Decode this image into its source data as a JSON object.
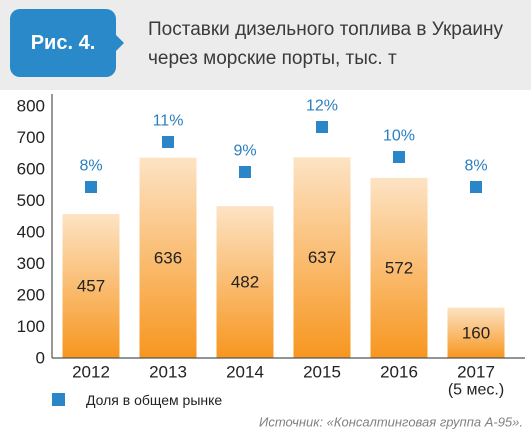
{
  "figure": {
    "label": "Рис. 4."
  },
  "chart_data": {
    "type": "bar",
    "title_lines": [
      "Поставки дизельного топлива в Украину",
      "через морские порты, тыс. т"
    ],
    "categories": [
      "2012",
      "2013",
      "2014",
      "2015",
      "2016",
      "2017"
    ],
    "category_sublabels": [
      "",
      "",
      "",
      "",
      "",
      "(5 мес.)"
    ],
    "ylim": [
      0,
      800
    ],
    "yticks": [
      0,
      100,
      200,
      300,
      400,
      500,
      600,
      700,
      800
    ],
    "grid": false,
    "legend_placement": "bottom-left",
    "series": [
      {
        "values": [
          457,
          636,
          482,
          637,
          572,
          160
        ]
      },
      {
        "name": "Доля в общем рынке",
        "values": [
          8,
          11,
          9,
          12,
          10,
          8
        ],
        "labels": [
          "8%",
          "11%",
          "9%",
          "12%",
          "10%",
          "8%"
        ]
      }
    ],
    "colors": {
      "bar_top": "#fde3c4",
      "bar_bottom": "#f7961f",
      "marker": "#2a86c7",
      "marker_label": "#2a7fc0",
      "figure_label": "#2a89c8"
    }
  },
  "source": "Источник: «Консалтинговая группа А-95»."
}
